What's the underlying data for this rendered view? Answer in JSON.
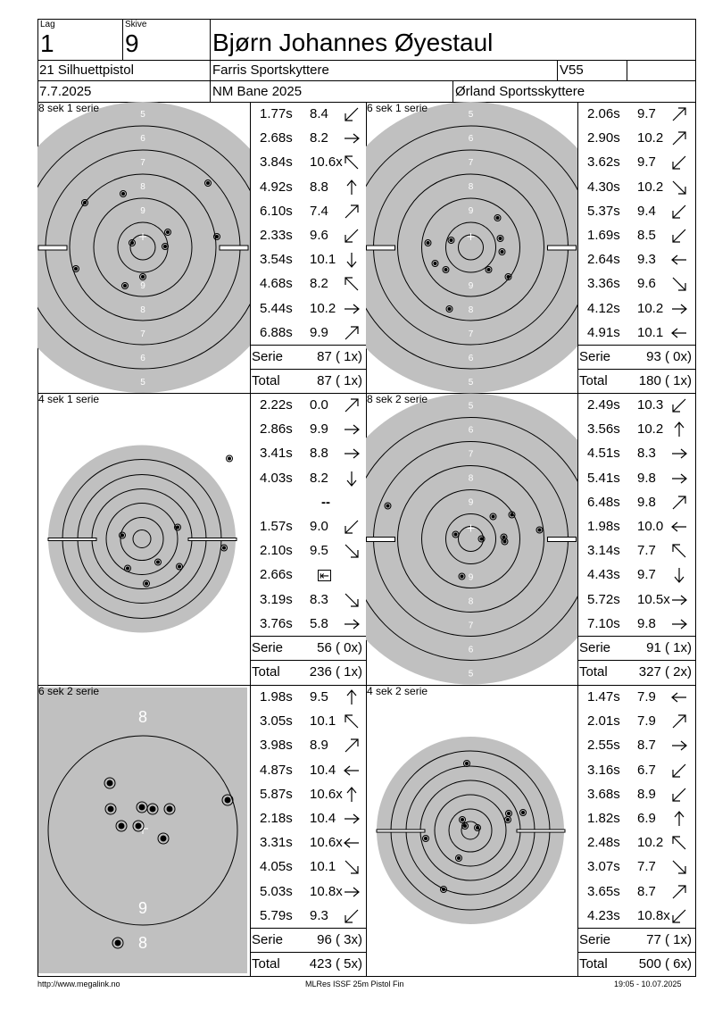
{
  "header": {
    "lag_label": "Lag",
    "lag": "1",
    "skive_label": "Skive",
    "skive": "9",
    "name": "Bjørn Johannes Øyestaul",
    "discipline": "21 Silhuettpistol",
    "club": "Farris Sportskyttere",
    "klass": "V55",
    "date": "7.7.2025",
    "event": "NM Bane 2025",
    "organizer": "Ørland Sportsskyttere"
  },
  "panels": [
    {
      "label": "8 sek 1 serie",
      "target": "silhouette",
      "shots": [
        {
          "time": "1.77s",
          "value": "8.4",
          "dir": "left-down"
        },
        {
          "time": "2.68s",
          "value": "8.2",
          "dir": "right"
        },
        {
          "time": "3.84s",
          "value": "10.6x",
          "dir": "left-up"
        },
        {
          "time": "4.92s",
          "value": "8.8",
          "dir": "up"
        },
        {
          "time": "6.10s",
          "value": "7.4",
          "dir": "right-up"
        },
        {
          "time": "2.33s",
          "value": "9.6",
          "dir": "left-down"
        },
        {
          "time": "3.54s",
          "value": "10.1",
          "dir": "down"
        },
        {
          "time": "4.68s",
          "value": "8.2",
          "dir": "left-up"
        },
        {
          "time": "5.44s",
          "value": "10.2",
          "dir": "right"
        },
        {
          "time": "6.88s",
          "value": "9.9",
          "dir": "right-up"
        }
      ],
      "serie_label": "Serie",
      "serie": "87 ( 1x)",
      "total_label": "Total",
      "total": "87 ( 1x)"
    },
    {
      "label": "6 sek 1 serie",
      "target": "silhouette",
      "shots": [
        {
          "time": "2.06s",
          "value": "9.7",
          "dir": "right-up"
        },
        {
          "time": "2.90s",
          "value": "10.2",
          "dir": "right-up"
        },
        {
          "time": "3.62s",
          "value": "9.7",
          "dir": "left-down"
        },
        {
          "time": "4.30s",
          "value": "10.2",
          "dir": "right-down"
        },
        {
          "time": "5.37s",
          "value": "9.4",
          "dir": "left-down"
        },
        {
          "time": "1.69s",
          "value": "8.5",
          "dir": "left-down"
        },
        {
          "time": "2.64s",
          "value": "9.3",
          "dir": "left"
        },
        {
          "time": "3.36s",
          "value": "9.6",
          "dir": "right-down"
        },
        {
          "time": "4.12s",
          "value": "10.2",
          "dir": "right"
        },
        {
          "time": "4.91s",
          "value": "10.1",
          "dir": "left"
        }
      ],
      "serie_label": "Serie",
      "serie": "93 ( 0x)",
      "total_label": "Total",
      "total": "180 ( 1x)"
    },
    {
      "label": "4 sek 1 serie",
      "target": "small",
      "shots": [
        {
          "time": "2.22s",
          "value": "0.0",
          "dir": "right-up"
        },
        {
          "time": "2.86s",
          "value": "9.9",
          "dir": "right"
        },
        {
          "time": "3.41s",
          "value": "8.8",
          "dir": "right"
        },
        {
          "time": "4.03s",
          "value": "8.2",
          "dir": "down"
        },
        {
          "time": "",
          "value": "--",
          "dir": ""
        },
        {
          "time": "1.57s",
          "value": "9.0",
          "dir": "left-down"
        },
        {
          "time": "2.10s",
          "value": "9.5",
          "dir": "right-down"
        },
        {
          "time": "2.66s",
          "value": "⇤",
          "dir": ""
        },
        {
          "time": "3.19s",
          "value": "8.3",
          "dir": "right-down"
        },
        {
          "time": "3.76s",
          "value": "5.8",
          "dir": "right"
        }
      ],
      "serie_label": "Serie",
      "serie": "56 ( 0x)",
      "total_label": "Total",
      "total": "236 ( 1x)"
    },
    {
      "label": "8 sek 2 serie",
      "target": "silhouette",
      "shots": [
        {
          "time": "2.49s",
          "value": "10.3",
          "dir": "left-down"
        },
        {
          "time": "3.56s",
          "value": "10.2",
          "dir": "up"
        },
        {
          "time": "4.51s",
          "value": "8.3",
          "dir": "right"
        },
        {
          "time": "5.41s",
          "value": "9.8",
          "dir": "right"
        },
        {
          "time": "6.48s",
          "value": "9.8",
          "dir": "right-up"
        },
        {
          "time": "1.98s",
          "value": "10.0",
          "dir": "left"
        },
        {
          "time": "3.14s",
          "value": "7.7",
          "dir": "left-up"
        },
        {
          "time": "4.43s",
          "value": "9.7",
          "dir": "down"
        },
        {
          "time": "5.72s",
          "value": "10.5x",
          "dir": "right"
        },
        {
          "time": "7.10s",
          "value": "9.8",
          "dir": "right"
        }
      ],
      "serie_label": "Serie",
      "serie": "91 ( 1x)",
      "total_label": "Total",
      "total": "327 ( 2x)"
    },
    {
      "label": "6 sek 2 serie",
      "target": "zoom",
      "shots": [
        {
          "time": "1.98s",
          "value": "9.5",
          "dir": "up"
        },
        {
          "time": "3.05s",
          "value": "10.1",
          "dir": "left-up"
        },
        {
          "time": "3.98s",
          "value": "8.9",
          "dir": "right-up"
        },
        {
          "time": "4.87s",
          "value": "10.4",
          "dir": "left"
        },
        {
          "time": "5.87s",
          "value": "10.6x",
          "dir": "up"
        },
        {
          "time": "2.18s",
          "value": "10.4",
          "dir": "right"
        },
        {
          "time": "3.31s",
          "value": "10.6x",
          "dir": "left"
        },
        {
          "time": "4.05s",
          "value": "10.1",
          "dir": "right-down"
        },
        {
          "time": "5.03s",
          "value": "10.8x",
          "dir": "right"
        },
        {
          "time": "5.79s",
          "value": "9.3",
          "dir": "left-down"
        }
      ],
      "serie_label": "Serie",
      "serie": "96 ( 3x)",
      "total_label": "Total",
      "total": "423 ( 5x)"
    },
    {
      "label": "4 sek 2 serie",
      "target": "small",
      "shots": [
        {
          "time": "1.47s",
          "value": "7.9",
          "dir": "left"
        },
        {
          "time": "2.01s",
          "value": "7.9",
          "dir": "right-up"
        },
        {
          "time": "2.55s",
          "value": "8.7",
          "dir": "right"
        },
        {
          "time": "3.16s",
          "value": "6.7",
          "dir": "left-down"
        },
        {
          "time": "3.68s",
          "value": "8.9",
          "dir": "left-down"
        },
        {
          "time": "1.82s",
          "value": "6.9",
          "dir": "up"
        },
        {
          "time": "2.48s",
          "value": "10.2",
          "dir": "left-up"
        },
        {
          "time": "3.07s",
          "value": "7.7",
          "dir": "right-down"
        },
        {
          "time": "3.65s",
          "value": "8.7",
          "dir": "right-up"
        },
        {
          "time": "4.23s",
          "value": "10.8x",
          "dir": "left-down"
        }
      ],
      "serie_label": "Serie",
      "serie": "77 ( 1x)",
      "total_label": "Total",
      "total": "500 ( 6x)"
    }
  ],
  "ring_numbers": {
    "silhouette": [
      "5",
      "6",
      "7",
      "8",
      "9"
    ],
    "zoom_top": "8",
    "zoom_mid": "9",
    "zoom_bottom": "8"
  },
  "footer": {
    "left": "http://www.megalink.no",
    "center": "MLRes ISSF 25m Pistol Fin",
    "right": "19:05 - 10.07.2025"
  },
  "colors": {
    "target_gray": "#c0c0c0",
    "line": "#000000"
  }
}
